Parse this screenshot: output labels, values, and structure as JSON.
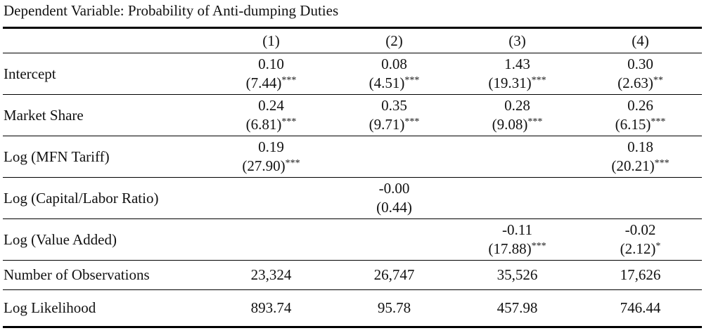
{
  "caption": "Dependent Variable: Probability of Anti-dumping Duties",
  "columns": [
    "(1)",
    "(2)",
    "(3)",
    "(4)"
  ],
  "rows": [
    {
      "label": "Intercept",
      "cells": [
        {
          "coef": "0.10",
          "t": "(7.44)",
          "stars": "***"
        },
        {
          "coef": "0.08",
          "t": "(4.51)",
          "stars": "***"
        },
        {
          "coef": "1.43",
          "t": "(19.31)",
          "stars": "***"
        },
        {
          "coef": "0.30",
          "t": "(2.63)",
          "stars": "**"
        }
      ]
    },
    {
      "label": "Market Share",
      "cells": [
        {
          "coef": "0.24",
          "t": "(6.81)",
          "stars": "***"
        },
        {
          "coef": "0.35",
          "t": "(9.71)",
          "stars": "***"
        },
        {
          "coef": "0.28",
          "t": "(9.08)",
          "stars": "***"
        },
        {
          "coef": "0.26",
          "t": "(6.15)",
          "stars": "***"
        }
      ]
    },
    {
      "label": "Log (MFN Tariff)",
      "cells": [
        {
          "coef": "0.19",
          "t": "(27.90)",
          "stars": "***"
        },
        null,
        null,
        {
          "coef": "0.18",
          "t": "(20.21)",
          "stars": "***"
        }
      ]
    },
    {
      "label": "Log (Capital/Labor Ratio)",
      "cells": [
        null,
        {
          "coef": "-0.00",
          "t": "(0.44)"
        },
        null,
        null
      ]
    },
    {
      "label": "Log (Value Added)",
      "cells": [
        null,
        null,
        {
          "coef": "-0.11",
          "t": "(17.88)",
          "stars": "***"
        },
        {
          "coef": "-0.02",
          "t": "(2.12)",
          "stars": "*"
        }
      ]
    },
    {
      "label": "Number of Observations",
      "values": [
        "23,324",
        "26,747",
        "35,526",
        "17,626"
      ]
    },
    {
      "label": "Log Likelihood",
      "values": [
        "893.74",
        "95.78",
        "457.98",
        "746.44"
      ]
    }
  ]
}
